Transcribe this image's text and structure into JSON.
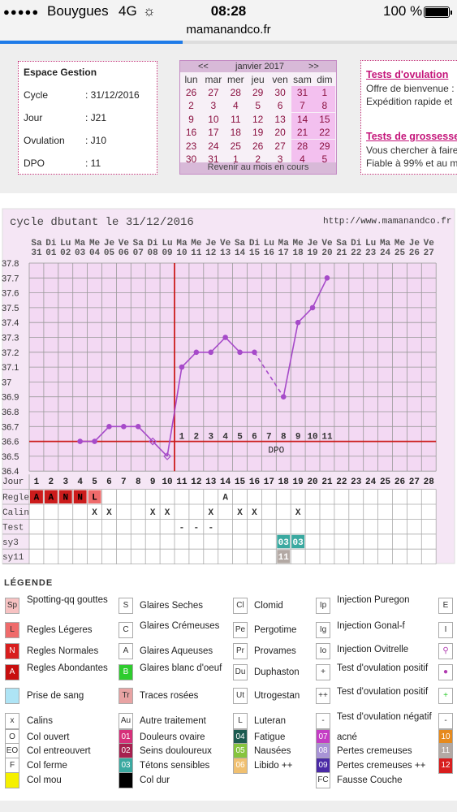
{
  "status": {
    "dots": "●●●●●",
    "carrier": "Bouygues",
    "network": "4G",
    "spinner": "☼",
    "time": "08:28",
    "battery": "100 %"
  },
  "browser": {
    "url": "mamanandco.fr",
    "load_progress": 0.4
  },
  "gestion": {
    "title": "Espace Gestion",
    "rows": [
      {
        "label": "Cycle",
        "value": ": 31/12/2016"
      },
      {
        "label": "Jour",
        "value": ": J21"
      },
      {
        "label": "Ovulation",
        "value": ": J10"
      },
      {
        "label": "DPO",
        "value": ": 11"
      }
    ]
  },
  "calendar": {
    "prev": "<<",
    "next": ">>",
    "month": "janvier 2017",
    "weekdays": [
      "lun",
      "mar",
      "mer",
      "jeu",
      "ven",
      "sam",
      "dim"
    ],
    "weeks": [
      [
        "26",
        "27",
        "28",
        "29",
        "30",
        "31",
        "1"
      ],
      [
        "2",
        "3",
        "4",
        "5",
        "6",
        "7",
        "8"
      ],
      [
        "9",
        "10",
        "11",
        "12",
        "13",
        "14",
        "15"
      ],
      [
        "16",
        "17",
        "18",
        "19",
        "20",
        "21",
        "22"
      ],
      [
        "23",
        "24",
        "25",
        "26",
        "27",
        "28",
        "29"
      ],
      [
        "30",
        "31",
        "1",
        "2",
        "3",
        "4",
        "5"
      ]
    ],
    "footer": "Revenir au mois en cours"
  },
  "ads": [
    {
      "title": "Tests d'ovulation",
      "lines": [
        "Offre de bienvenue :",
        "Expédition rapide et"
      ]
    },
    {
      "title": "Tests de grossesse",
      "lines": [
        "Vous chercher à faire",
        "Fiable à 99% et au m"
      ]
    }
  ],
  "chart_data": {
    "type": "line",
    "title": "cycle dbutant le 31/12/2016",
    "url": "http://www.mamanandco.fr",
    "day_abbr": [
      "Sa",
      "Di",
      "Lu",
      "Ma",
      "Me",
      "Je",
      "Ve",
      "Sa",
      "Di",
      "Lu",
      "Ma",
      "Me",
      "Je",
      "Ve",
      "Sa",
      "Di",
      "Lu",
      "Ma",
      "Me",
      "Je",
      "Ve",
      "Sa",
      "Di",
      "Lu",
      "Ma",
      "Me",
      "Je",
      "Ve"
    ],
    "dates": [
      "31",
      "01",
      "02",
      "03",
      "04",
      "05",
      "06",
      "07",
      "08",
      "09",
      "10",
      "11",
      "12",
      "13",
      "14",
      "15",
      "16",
      "17",
      "18",
      "19",
      "20",
      "21",
      "22",
      "23",
      "24",
      "25",
      "26",
      "27"
    ],
    "cycle_days": [
      1,
      2,
      3,
      4,
      5,
      6,
      7,
      8,
      9,
      10,
      11,
      12,
      13,
      14,
      15,
      16,
      17,
      18,
      19,
      20,
      21,
      22,
      23,
      24,
      25,
      26,
      27,
      28
    ],
    "y_ticks": [
      "37.8",
      "37.7",
      "37.6",
      "37.5",
      "37.4",
      "37.3",
      "37.2",
      "37.1",
      "37",
      "36.9",
      "36.8",
      "36.7",
      "36.6",
      "36.5",
      "36.4"
    ],
    "ylim": [
      36.4,
      37.8
    ],
    "temperatures": [
      {
        "day": 4,
        "t": 36.6
      },
      {
        "day": 5,
        "t": 36.6
      },
      {
        "day": 6,
        "t": 36.7
      },
      {
        "day": 7,
        "t": 36.7
      },
      {
        "day": 8,
        "t": 36.7
      },
      {
        "day": 9,
        "t": 36.6,
        "open": true
      },
      {
        "day": 10,
        "t": 36.5,
        "open": true
      },
      {
        "day": 11,
        "t": 37.1
      },
      {
        "day": 12,
        "t": 37.2
      },
      {
        "day": 13,
        "t": 37.2
      },
      {
        "day": 14,
        "t": 37.3
      },
      {
        "day": 15,
        "t": 37.2
      },
      {
        "day": 16,
        "t": 37.2
      },
      {
        "day": 18,
        "t": 36.9
      },
      {
        "day": 19,
        "t": 37.4
      },
      {
        "day": 20,
        "t": 37.5
      },
      {
        "day": 21,
        "t": 37.7
      }
    ],
    "gap_dashed": {
      "from": 16,
      "to": 18
    },
    "coverline": 36.6,
    "ovulation_day": 10,
    "dpo_numbers": [
      "1",
      "2",
      "3",
      "4",
      "5",
      "6",
      "7",
      "8",
      "9",
      "10",
      "11"
    ],
    "dpo_label": "DPO",
    "jour_label": "Jour",
    "rows": [
      {
        "label": "Regle",
        "cells": [
          {
            "day": 1,
            "text": "A",
            "color": "#cc1c1c"
          },
          {
            "day": 2,
            "text": "A",
            "color": "#cc1c1c"
          },
          {
            "day": 3,
            "text": "N",
            "color": "#cc1c1c"
          },
          {
            "day": 4,
            "text": "N",
            "color": "#cc1c1c"
          },
          {
            "day": 5,
            "text": "L",
            "color": "#ef6b6b"
          },
          {
            "day": 14,
            "text": "A",
            "color": "#ffffff"
          }
        ]
      },
      {
        "label": "Calin",
        "cells": [
          {
            "day": 5,
            "text": "X"
          },
          {
            "day": 6,
            "text": "X"
          },
          {
            "day": 9,
            "text": "X"
          },
          {
            "day": 10,
            "text": "X"
          },
          {
            "day": 13,
            "text": "X"
          },
          {
            "day": 15,
            "text": "X"
          },
          {
            "day": 16,
            "text": "X"
          },
          {
            "day": 19,
            "text": "X"
          }
        ]
      },
      {
        "label": "Test",
        "cells": [
          {
            "day": 11,
            "text": "-"
          },
          {
            "day": 12,
            "text": "-"
          },
          {
            "day": 13,
            "text": "-"
          }
        ]
      },
      {
        "label": "sy3",
        "cells": [
          {
            "day": 18,
            "text": "03",
            "color": "#3aa9a0"
          },
          {
            "day": 19,
            "text": "03",
            "color": "#3aa9a0"
          }
        ]
      },
      {
        "label": "sy11",
        "cells": [
          {
            "day": 18,
            "text": "11",
            "color": "#b3a9a4"
          }
        ]
      }
    ],
    "grid": true
  },
  "legend": {
    "title": "LÉGENDE",
    "items": [
      {
        "code": "Sp",
        "label": "Spotting-qq gouttes",
        "bg": "#f7c2c2"
      },
      {
        "code": "S",
        "label": "Glaires Seches",
        "bg": "#ffffff"
      },
      {
        "code": "Cl",
        "label": "Clomid",
        "bg": "#ffffff"
      },
      {
        "code": "Ip",
        "label": "Injection Puregon",
        "bg": "#ffffff"
      },
      {
        "code": "E",
        "label": "",
        "bg": "#ffffff"
      },
      {
        "code": "L",
        "label": "Regles Légeres",
        "bg": "#ef6b6b"
      },
      {
        "code": "C",
        "label": "Glaires Crémeuses",
        "bg": "#ffffff"
      },
      {
        "code": "Pe",
        "label": "Pergotime",
        "bg": "#ffffff"
      },
      {
        "code": "Ig",
        "label": "Injection Gonal-f",
        "bg": "#ffffff"
      },
      {
        "code": "I",
        "label": "",
        "bg": "#ffffff"
      },
      {
        "code": "N",
        "label": "Regles Normales",
        "bg": "#d81e1e"
      },
      {
        "code": "A",
        "label": "Glaires Aqueuses",
        "bg": "#ffffff"
      },
      {
        "code": "Pr",
        "label": "Provames",
        "bg": "#ffffff"
      },
      {
        "code": "Io",
        "label": "Injection Ovitrelle",
        "bg": "#ffffff"
      },
      {
        "code": "⚲",
        "label": "",
        "bg": "#ffffff"
      },
      {
        "code": "A",
        "label": "Regles Abondantes",
        "bg": "#c80f0f"
      },
      {
        "code": "B",
        "label": "Glaires blanc d'oeuf",
        "bg": "#2ecc2e"
      },
      {
        "code": "Du",
        "label": "Duphaston",
        "bg": "#ffffff"
      },
      {
        "code": "+",
        "label": "Test d'ovulation positif",
        "bg": "#ffffff"
      },
      {
        "code": "●",
        "label": "",
        "bg": "#ffffff"
      },
      {
        "code": "",
        "label": "Prise de sang",
        "bg": "#aee4f5"
      },
      {
        "code": "Tr",
        "label": "Traces rosées",
        "bg": "#e8a3a3"
      },
      {
        "code": "Ut",
        "label": "Utrogestan",
        "bg": "#ffffff"
      },
      {
        "code": "++",
        "label": "Test d'ovulation positif",
        "bg": "#ffffff"
      },
      {
        "code": "+",
        "label": "",
        "bg": "#ffffff"
      },
      {
        "code": "x",
        "label": "Calins",
        "bg": "#ffffff"
      },
      {
        "code": "Au",
        "label": "Autre traitement",
        "bg": "#ffffff"
      },
      {
        "code": "L",
        "label": "Luteran",
        "bg": "#ffffff"
      },
      {
        "code": "-",
        "label": "Test d'ovulation négatif",
        "bg": "#ffffff"
      },
      {
        "code": "-",
        "label": "",
        "bg": "#ffffff"
      },
      {
        "code": "O",
        "label": "Col ouvert",
        "bg": "#ffffff"
      },
      {
        "code": "01",
        "label": "Douleurs ovaire",
        "bg": "#d6307a"
      },
      {
        "code": "04",
        "label": "Fatigue",
        "bg": "#1c5b50"
      },
      {
        "code": "07",
        "label": "acné",
        "bg": "#c43dc4"
      },
      {
        "code": "10",
        "label": "",
        "bg": "#e68a1e"
      },
      {
        "code": "EO",
        "label": "Col entreouvert",
        "bg": "#ffffff"
      },
      {
        "code": "02",
        "label": "Seins douloureux",
        "bg": "#a6204f"
      },
      {
        "code": "05",
        "label": "Nausées",
        "bg": "#86c43d"
      },
      {
        "code": "08",
        "label": "Pertes cremeuses",
        "bg": "#a893d6"
      },
      {
        "code": "11",
        "label": "",
        "bg": "#b3a9a4"
      },
      {
        "code": "F",
        "label": "Col ferme",
        "bg": "#ffffff"
      },
      {
        "code": "03",
        "label": "Tétons sensibles",
        "bg": "#3aa9a0"
      },
      {
        "code": "06",
        "label": "Libido ++",
        "bg": "#f0c070"
      },
      {
        "code": "09",
        "label": "Pertes cremeuses ++",
        "bg": "#4a2aa6"
      },
      {
        "code": "12",
        "label": "",
        "bg": "#d81e1e"
      },
      {
        "code": "",
        "label": "Col mou",
        "bg": "#f5f000"
      },
      {
        "code": "",
        "label": "Col dur",
        "bg": "#000000"
      },
      {
        "code": "",
        "label": "",
        "bg": "none"
      },
      {
        "code": "FC",
        "label": "Fausse Couche",
        "bg": "#ffffff"
      },
      {
        "code": "",
        "label": "",
        "bg": "none"
      }
    ]
  },
  "colors": {
    "pink": "#c4157a",
    "chart_bg": "#f3d9f3",
    "line": "#a64ac9",
    "coverline": "#cc1c1c"
  }
}
